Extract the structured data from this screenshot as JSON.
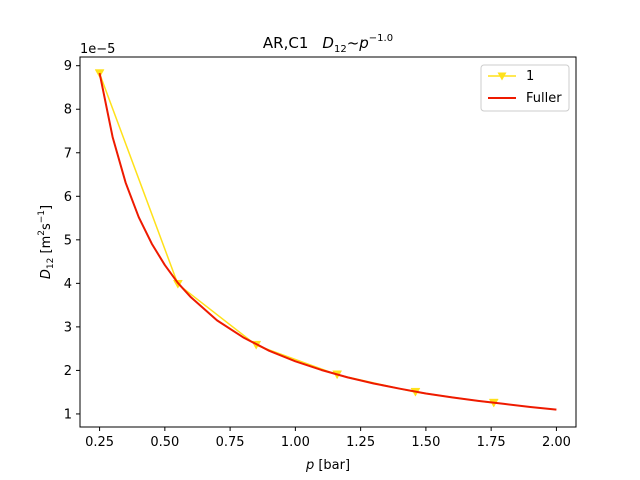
{
  "chart_data": {
    "type": "line",
    "title_plain": "AR,C1",
    "title_formula": "D",
    "title_formula_sub": "12",
    "title_formula_rest": "~p",
    "title_formula_sup": "−1.0",
    "xlabel_var": "p",
    "xlabel_unit": " [bar]",
    "ylabel_var": "D",
    "ylabel_sub": "12",
    "ylabel_unit_pre": " [m",
    "ylabel_unit_sup1": "2",
    "ylabel_unit_mid": "s",
    "ylabel_unit_sup2": "−1",
    "ylabel_unit_post": "]",
    "y_offset_text": "1e−5",
    "xlim": [
      0.175,
      2.075
    ],
    "ylim": [
      0.7,
      9.2
    ],
    "xticks": [
      0.25,
      0.5,
      0.75,
      1.0,
      1.25,
      1.5,
      1.75,
      2.0
    ],
    "xtick_labels": [
      "0.25",
      "0.50",
      "0.75",
      "1.00",
      "1.25",
      "1.50",
      "1.75",
      "2.00"
    ],
    "yticks": [
      1,
      2,
      3,
      4,
      5,
      6,
      7,
      8,
      9
    ],
    "ytick_labels": [
      "1",
      "2",
      "3",
      "4",
      "5",
      "6",
      "7",
      "8",
      "9"
    ],
    "legend_position": "top-right",
    "series": [
      {
        "name": "1",
        "kind": "line-markers",
        "marker": "triangle-down",
        "color": "#FFE11A",
        "x": [
          0.25,
          0.55,
          0.85,
          1.16,
          1.46,
          1.76
        ],
        "y": [
          8.82,
          3.98,
          2.58,
          1.9,
          1.5,
          1.25
        ]
      },
      {
        "name": "Fuller",
        "kind": "line",
        "color": "#EE1A00",
        "x": [
          0.25,
          0.3,
          0.35,
          0.4,
          0.45,
          0.5,
          0.55,
          0.6,
          0.7,
          0.8,
          0.9,
          1.0,
          1.1,
          1.2,
          1.3,
          1.4,
          1.5,
          1.6,
          1.7,
          1.8,
          1.9,
          2.0
        ],
        "y": [
          8.83,
          7.36,
          6.31,
          5.52,
          4.91,
          4.42,
          4.01,
          3.68,
          3.15,
          2.76,
          2.45,
          2.21,
          2.01,
          1.84,
          1.7,
          1.58,
          1.47,
          1.38,
          1.3,
          1.23,
          1.16,
          1.1
        ]
      }
    ]
  }
}
